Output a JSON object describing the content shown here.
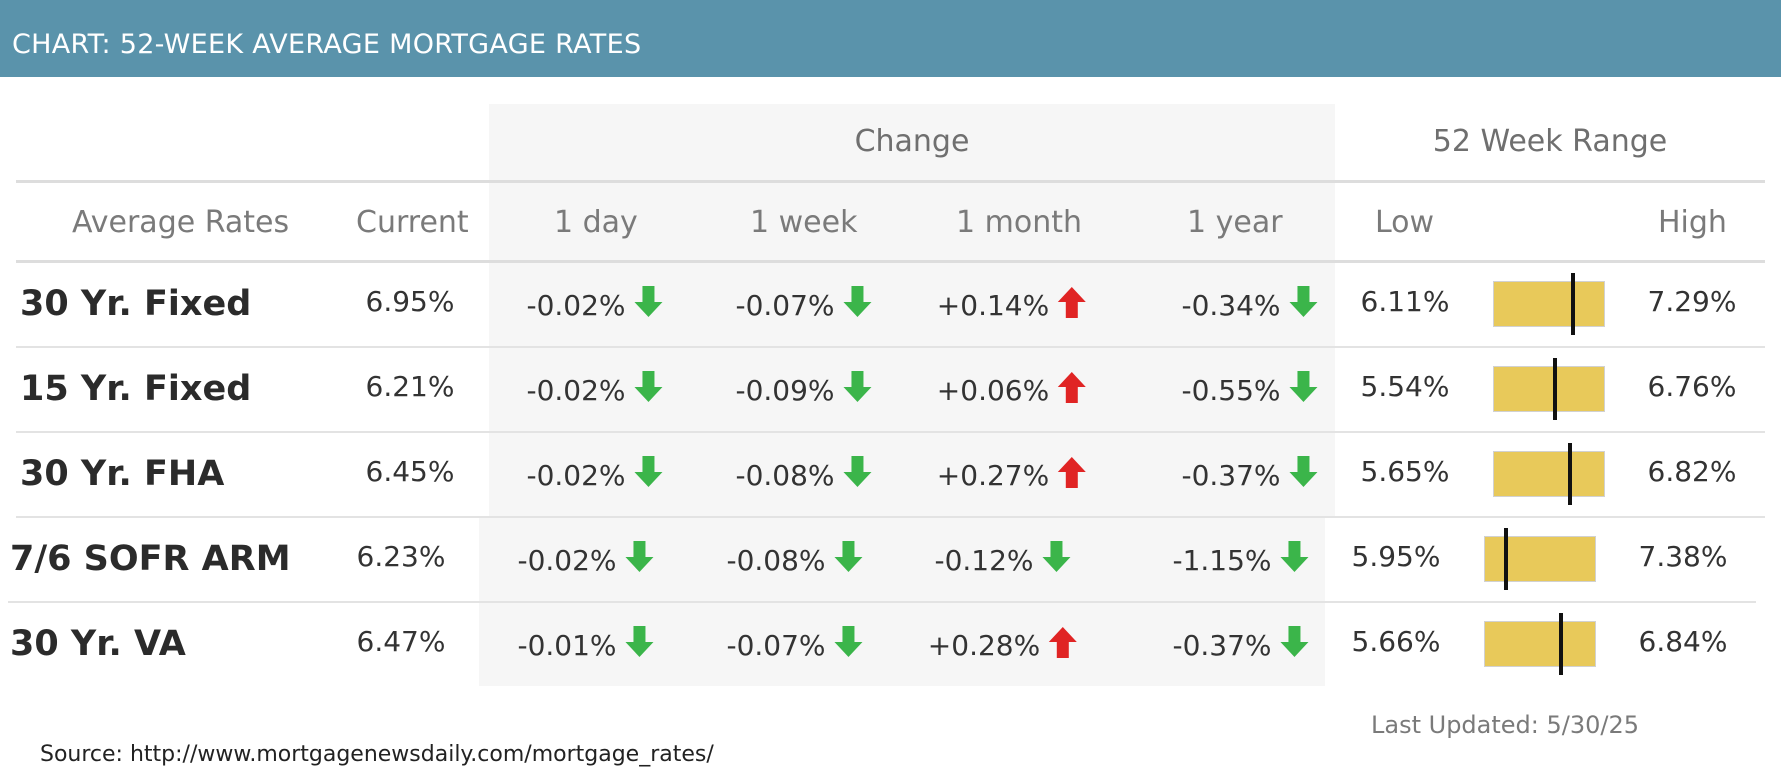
{
  "header": {
    "title": "CHART: 52-WEEK AVERAGE MORTGAGE RATES"
  },
  "groups": {
    "change": "Change",
    "range": "52 Week Range"
  },
  "columns": {
    "label": "Average Rates",
    "current": "Current",
    "day": "1 day",
    "week": "1 week",
    "month": "1 month",
    "year": "1 year",
    "low": "Low",
    "high": "High"
  },
  "footer": {
    "updated": "Last Updated: 5/30/25",
    "source": "Source: http://www.mortgagenewsdaily.com/mortgage_rates/"
  },
  "colors": {
    "header": "#5a93ab",
    "down": "#3bb54a",
    "up": "#e02424",
    "bar": "#e8c95a"
  },
  "chart_data": {
    "type": "table",
    "title": "CHART: 52-WEEK AVERAGE MORTGAGE RATES",
    "rows": [
      {
        "label": "30 Yr. Fixed",
        "current": "6.95%",
        "current_value": 6.95,
        "day": "-0.02%",
        "day_dir": "down",
        "week": "-0.07%",
        "week_dir": "down",
        "month": "+0.14%",
        "month_dir": "up",
        "year": "-0.34%",
        "year_dir": "down",
        "low": "6.11%",
        "low_value": 6.11,
        "high": "7.29%",
        "high_value": 7.29
      },
      {
        "label": "15 Yr. Fixed",
        "current": "6.21%",
        "current_value": 6.21,
        "day": "-0.02%",
        "day_dir": "down",
        "week": "-0.09%",
        "week_dir": "down",
        "month": "+0.06%",
        "month_dir": "up",
        "year": "-0.55%",
        "year_dir": "down",
        "low": "5.54%",
        "low_value": 5.54,
        "high": "6.76%",
        "high_value": 6.76
      },
      {
        "label": "30 Yr. FHA",
        "current": "6.45%",
        "current_value": 6.45,
        "day": "-0.02%",
        "day_dir": "down",
        "week": "-0.08%",
        "week_dir": "down",
        "month": "+0.27%",
        "month_dir": "up",
        "year": "-0.37%",
        "year_dir": "down",
        "low": "5.65%",
        "low_value": 5.65,
        "high": "6.82%",
        "high_value": 6.82
      },
      {
        "label": "7/6 SOFR ARM",
        "current": "6.23%",
        "current_value": 6.23,
        "day": "-0.02%",
        "day_dir": "down",
        "week": "-0.08%",
        "week_dir": "down",
        "month": "-0.12%",
        "month_dir": "down",
        "year": "-1.15%",
        "year_dir": "down",
        "low": "5.95%",
        "low_value": 5.95,
        "high": "7.38%",
        "high_value": 7.38
      },
      {
        "label": "30 Yr. VA",
        "current": "6.47%",
        "current_value": 6.47,
        "day": "-0.01%",
        "day_dir": "down",
        "week": "-0.07%",
        "week_dir": "down",
        "month": "+0.28%",
        "month_dir": "up",
        "year": "-0.37%",
        "year_dir": "down",
        "low": "5.66%",
        "low_value": 5.66,
        "high": "6.84%",
        "high_value": 6.84
      }
    ]
  }
}
